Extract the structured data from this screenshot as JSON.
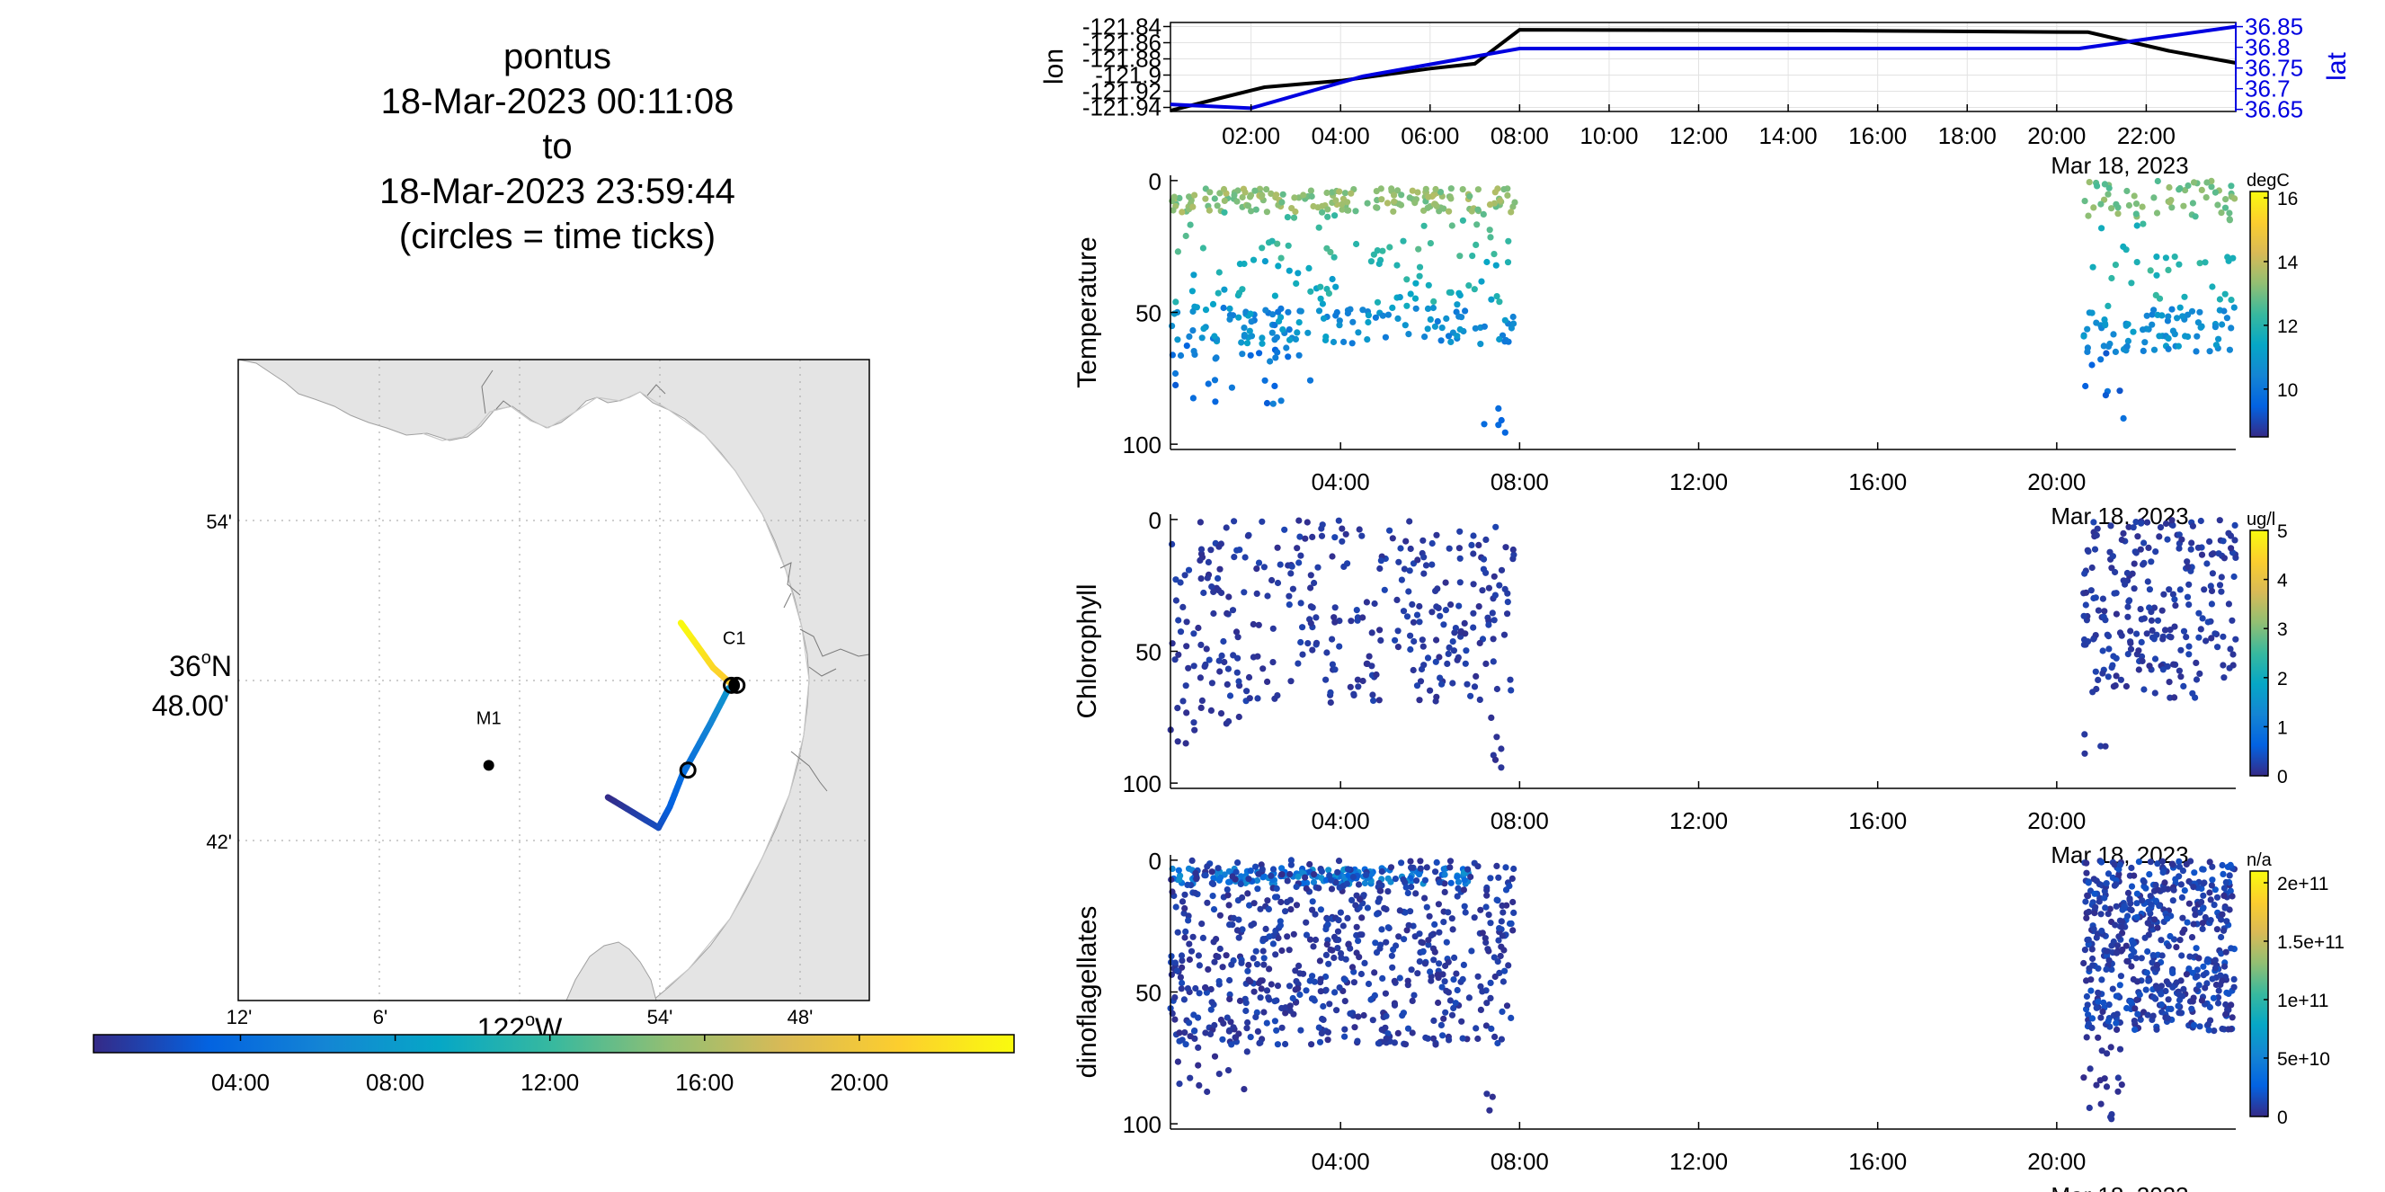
{
  "title": {
    "vehicle": "pontus",
    "start": "18-Mar-2023 00:11:08",
    "to": "to",
    "end": "18-Mar-2023 23:59:44",
    "note": "(circles = time ticks)"
  },
  "map": {
    "lat_labels": [
      "54'",
      "36°N 48.00'",
      "42'"
    ],
    "lat_label_main_deg": "36",
    "lat_label_main_hem": "N",
    "lat_label_main_min": "48.00'",
    "lon_labels": [
      "12'",
      "6'",
      "54'",
      "48'"
    ],
    "lon_label_main_deg": "122",
    "lon_label_main_hem": "W",
    "stations": [
      {
        "name": "C1",
        "lat": 36.797,
        "lon": -121.847
      },
      {
        "name": "M1",
        "lat": 36.747,
        "lon": -122.022
      }
    ],
    "track": [
      {
        "t": 0.2,
        "lat": 36.727,
        "lon": -121.937
      },
      {
        "t": 2.0,
        "lat": 36.708,
        "lon": -121.901
      },
      {
        "t": 3.0,
        "lat": 36.721,
        "lon": -121.893
      },
      {
        "t": 4.0,
        "lat": 36.741,
        "lon": -121.884
      },
      {
        "t": 6.0,
        "lat": 36.773,
        "lon": -121.864
      },
      {
        "t": 7.5,
        "lat": 36.795,
        "lon": -121.851
      },
      {
        "t": 8.0,
        "lat": 36.797,
        "lon": -121.848
      },
      {
        "t": 20.5,
        "lat": 36.797,
        "lon": -121.848
      },
      {
        "t": 21.5,
        "lat": 36.808,
        "lon": -121.862
      },
      {
        "t": 24.0,
        "lat": 36.836,
        "lon": -121.885
      }
    ],
    "time_circles": [
      {
        "lat": 36.797,
        "lon": -121.849
      },
      {
        "lat": 36.797,
        "lon": -121.845
      },
      {
        "lat": 36.744,
        "lon": -121.88
      }
    ]
  },
  "colorbar_time": {
    "ticks": [
      "04:00",
      "08:00",
      "12:00",
      "16:00",
      "20:00"
    ],
    "tick_hours": [
      4,
      8,
      12,
      16,
      20
    ],
    "range_hours": [
      0.2,
      24
    ]
  },
  "chart_data": [
    {
      "type": "line",
      "ylabel": "lon",
      "y2label": "lat",
      "y_ticks": [
        "-121.84",
        "-121.86",
        "-121.88",
        "-121.9",
        "-121.92",
        "-121.94"
      ],
      "y_tick_values": [
        -121.84,
        -121.86,
        -121.88,
        -121.9,
        -121.92,
        -121.94
      ],
      "y2_ticks": [
        "36.85",
        "36.8",
        "36.75",
        "36.7",
        "36.65"
      ],
      "y2_tick_values": [
        36.85,
        36.8,
        36.75,
        36.7,
        36.65
      ],
      "x_ticks": [
        "02:00",
        "04:00",
        "06:00",
        "08:00",
        "10:00",
        "12:00",
        "14:00",
        "16:00",
        "18:00",
        "20:00",
        "22:00"
      ],
      "x_tick_hours": [
        2,
        4,
        6,
        8,
        10,
        12,
        14,
        16,
        18,
        20,
        22
      ],
      "date_label": "Mar 18, 2023",
      "ylim": [
        -121.945,
        -121.835
      ],
      "y2lim": [
        36.645,
        36.86
      ],
      "xlim_hours": [
        0.2,
        24
      ],
      "series": [
        {
          "axis": "left",
          "color": "#000000",
          "x": [
            0.2,
            1.2,
            2.3,
            4.0,
            6.0,
            7.0,
            8.0,
            15.0,
            20.7,
            22.5,
            24.0
          ],
          "y": [
            -121.944,
            -121.93,
            -121.915,
            -121.907,
            -121.892,
            -121.886,
            -121.844,
            -121.845,
            -121.847,
            -121.87,
            -121.885
          ]
        },
        {
          "axis": "right",
          "color": "#0000e0",
          "x": [
            0.2,
            2.0,
            4.5,
            8.0,
            20.5,
            24.0
          ],
          "y": [
            36.662,
            36.653,
            36.73,
            36.797,
            36.797,
            36.85
          ]
        }
      ]
    },
    {
      "type": "scatter",
      "ylabel": "Temperature",
      "unit": "degC",
      "colorbar_ticks": [
        "16",
        "14",
        "12",
        "10"
      ],
      "colorbar_tick_values": [
        16,
        14,
        12,
        10
      ],
      "clim": [
        8.5,
        16.2
      ],
      "x_ticks": [
        "04:00",
        "08:00",
        "12:00",
        "16:00",
        "20:00"
      ],
      "x_tick_hours": [
        4,
        8,
        12,
        16,
        20
      ],
      "y_ticks": [
        "0",
        "50",
        "100"
      ],
      "ylim": [
        102,
        -2
      ],
      "xlim_hours": [
        0.2,
        24
      ],
      "date_label": "Mar 18, 2023",
      "clusters": [
        {
          "t": [
            0.2,
            7.9
          ],
          "d": [
            3,
            12
          ],
          "v": [
            12.8,
            13.8
          ],
          "n": 170
        },
        {
          "t": [
            0.2,
            7.9
          ],
          "d": [
            12,
            30
          ],
          "v": [
            12.0,
            12.8
          ],
          "n": 40
        },
        {
          "t": [
            0.2,
            7.9
          ],
          "d": [
            30,
            48
          ],
          "v": [
            11.0,
            12.2
          ],
          "n": 60
        },
        {
          "t": [
            0.2,
            7.9
          ],
          "d": [
            48,
            62
          ],
          "v": [
            10.0,
            11.3
          ],
          "n": 130
        },
        {
          "t": [
            0.2,
            3.5
          ],
          "d": [
            62,
            85
          ],
          "v": [
            9.3,
            10.5
          ],
          "n": 30
        },
        {
          "t": [
            7.2,
            7.7
          ],
          "d": [
            85,
            98
          ],
          "v": [
            9.2,
            9.8
          ],
          "n": 5
        },
        {
          "t": [
            20.6,
            24.0
          ],
          "d": [
            0,
            15
          ],
          "v": [
            12.5,
            13.5
          ],
          "n": 60
        },
        {
          "t": [
            20.6,
            24.0
          ],
          "d": [
            15,
            48
          ],
          "v": [
            11.5,
            12.5
          ],
          "n": 30
        },
        {
          "t": [
            20.6,
            24.0
          ],
          "d": [
            48,
            65
          ],
          "v": [
            10.2,
            11.2
          ],
          "n": 80
        },
        {
          "t": [
            20.6,
            21.6
          ],
          "d": [
            65,
            95
          ],
          "v": [
            9.2,
            10.0
          ],
          "n": 8
        }
      ]
    },
    {
      "type": "scatter",
      "ylabel": "Chlorophyll",
      "unit": "ug/l",
      "colorbar_ticks": [
        "5",
        "4",
        "3",
        "2",
        "1",
        "0"
      ],
      "colorbar_tick_values": [
        5,
        4,
        3,
        2,
        1,
        0
      ],
      "clim": [
        0,
        5
      ],
      "x_ticks": [
        "04:00",
        "08:00",
        "12:00",
        "16:00",
        "20:00"
      ],
      "x_tick_hours": [
        4,
        8,
        12,
        16,
        20
      ],
      "y_ticks": [
        "0",
        "50",
        "100"
      ],
      "ylim": [
        102,
        -2
      ],
      "xlim_hours": [
        0.2,
        24
      ],
      "date_label": "Mar 18, 2023",
      "clusters": [
        {
          "t": [
            0.2,
            7.9
          ],
          "d": [
            0,
            70
          ],
          "v": [
            0.05,
            0.3
          ],
          "n": 330
        },
        {
          "t": [
            0.2,
            2.0
          ],
          "d": [
            65,
            85
          ],
          "v": [
            0.05,
            0.2
          ],
          "n": 15
        },
        {
          "t": [
            7.2,
            7.8
          ],
          "d": [
            70,
            95
          ],
          "v": [
            0.05,
            0.2
          ],
          "n": 6
        },
        {
          "t": [
            20.6,
            24.0
          ],
          "d": [
            0,
            68
          ],
          "v": [
            0.05,
            0.3
          ],
          "n": 240
        },
        {
          "t": [
            20.6,
            21.2
          ],
          "d": [
            75,
            92
          ],
          "v": [
            0.05,
            0.2
          ],
          "n": 4
        }
      ]
    },
    {
      "type": "scatter",
      "ylabel": "dinoflagellates",
      "unit": "n/a",
      "colorbar_ticks": [
        "2e+11",
        "1.5e+11",
        "1e+11",
        "5e+10",
        "0"
      ],
      "colorbar_tick_values": [
        200000000000.0,
        150000000000.0,
        100000000000.0,
        50000000000.0,
        0
      ],
      "clim": [
        0,
        210000000000.0
      ],
      "x_ticks": [
        "04:00",
        "08:00",
        "12:00",
        "16:00",
        "20:00"
      ],
      "x_tick_hours": [
        4,
        8,
        12,
        16,
        20
      ],
      "y_ticks": [
        "0",
        "50",
        "100"
      ],
      "ylim": [
        102,
        -2
      ],
      "xlim_hours": [
        0.2,
        24
      ],
      "date_label": "Mar 18, 2023",
      "clusters": [
        {
          "t": [
            0.2,
            7.0
          ],
          "d": [
            3,
            9
          ],
          "v": [
            20000000000.0,
            65000000000.0
          ],
          "n": 160
        },
        {
          "t": [
            0.2,
            7.9
          ],
          "d": [
            0,
            70
          ],
          "v": [
            1000000000.0,
            15000000000.0
          ],
          "n": 650
        },
        {
          "t": [
            0.2,
            2.0
          ],
          "d": [
            60,
            90
          ],
          "v": [
            1000000000.0,
            8000000000.0
          ],
          "n": 20
        },
        {
          "t": [
            7.2,
            7.6
          ],
          "d": [
            85,
            95
          ],
          "v": [
            1000000000.0,
            5000000000.0
          ],
          "n": 3
        },
        {
          "t": [
            20.6,
            24.0
          ],
          "d": [
            0,
            65
          ],
          "v": [
            1000000000.0,
            20000000000.0
          ],
          "n": 520
        },
        {
          "t": [
            20.6,
            21.5
          ],
          "d": [
            65,
            100
          ],
          "v": [
            1000000000.0,
            8000000000.0
          ],
          "n": 20
        }
      ]
    }
  ]
}
